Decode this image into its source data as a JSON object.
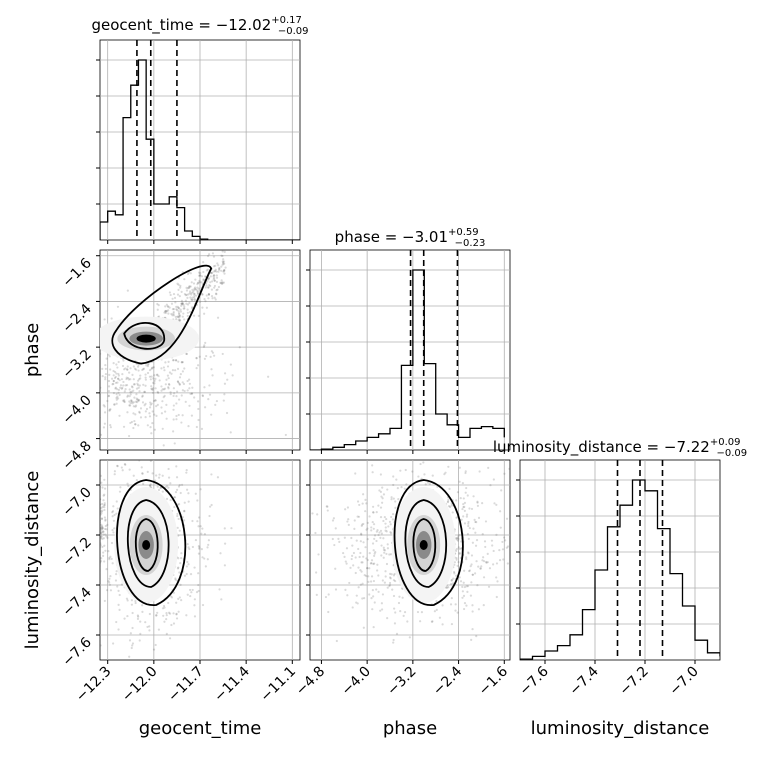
{
  "chart_data": {
    "type": "corner",
    "parameters": [
      "geocent_time",
      "phase",
      "luminosity_distance"
    ],
    "axes": {
      "geocent_time": {
        "range": [
          -12.35,
          -11.05
        ],
        "ticks": [
          -12.3,
          -12.0,
          -11.7,
          -11.4,
          -11.1
        ],
        "tick_labels": [
          "−12.3",
          "−12.0",
          "−11.7",
          "−11.4",
          "−11.1"
        ],
        "label": "geocent_time"
      },
      "phase": {
        "range": [
          -5.0,
          -1.5
        ],
        "ticks": [
          -4.8,
          -4.0,
          -3.2,
          -2.4,
          -1.6
        ],
        "tick_labels": [
          "−4.8",
          "−4.0",
          "−3.2",
          "−2.4",
          "−1.6"
        ],
        "label": "phase"
      },
      "luminosity_distance": {
        "range": [
          -7.7,
          -6.9
        ],
        "ticks": [
          -7.6,
          -7.4,
          -7.2,
          -7.0
        ],
        "tick_labels": [
          "−7.6",
          "−7.4",
          "−7.2",
          "−7.0"
        ],
        "label": "luminosity_distance"
      }
    },
    "titles": [
      {
        "name": "geocent_time",
        "main": "geocent_time = −12.02",
        "sup": "+0.17",
        "sub": "−0.09"
      },
      {
        "name": "phase",
        "main": "phase = −3.01",
        "sup": "+0.59",
        "sub": "−0.23"
      },
      {
        "name": "luminosity_distance",
        "main": "luminosity_distance = −7.22",
        "sup": "+0.09",
        "sub": "−0.09"
      }
    ],
    "histograms": [
      {
        "param": "geocent_time",
        "bins": [
          -12.35,
          -12.3,
          -12.25,
          -12.2,
          -12.15,
          -12.1,
          -12.05,
          -12.0,
          -11.95,
          -11.9,
          -11.85,
          -11.8,
          -11.75,
          -11.7,
          -11.65,
          -11.6,
          -11.55,
          -11.5,
          -11.45,
          -11.4,
          -11.35,
          -11.3,
          -11.25,
          -11.2,
          -11.15,
          -11.1,
          -11.05
        ],
        "counts": [
          0.1,
          0.16,
          0.14,
          0.68,
          0.86,
          1.0,
          0.56,
          0.2,
          0.2,
          0.24,
          0.18,
          0.05,
          0.02,
          0.005,
          0,
          0,
          0,
          0,
          0,
          0,
          0,
          0,
          0,
          0,
          0,
          0
        ],
        "quantiles": [
          -12.11,
          -12.02,
          -11.85
        ]
      },
      {
        "param": "phase",
        "bins": [
          -5.0,
          -4.8,
          -4.6,
          -4.4,
          -4.2,
          -4.0,
          -3.8,
          -3.6,
          -3.4,
          -3.2,
          -3.0,
          -2.8,
          -2.6,
          -2.4,
          -2.2,
          -2.0,
          -1.8,
          -1.6
        ],
        "counts": [
          0,
          0.005,
          0.015,
          0.03,
          0.05,
          0.07,
          0.09,
          0.12,
          0.47,
          1.0,
          0.48,
          0.2,
          0.14,
          0.07,
          0.12,
          0.13,
          0.12,
          0.07
        ],
        "quantiles": [
          -3.24,
          -3.01,
          -2.42
        ]
      },
      {
        "param": "luminosity_distance",
        "bins": [
          -7.7,
          -7.65,
          -7.6,
          -7.55,
          -7.5,
          -7.45,
          -7.4,
          -7.35,
          -7.3,
          -7.25,
          -7.2,
          -7.15,
          -7.1,
          -7.05,
          -7.0,
          -6.95,
          -6.9
        ],
        "counts": [
          0.005,
          0.02,
          0.05,
          0.08,
          0.14,
          0.28,
          0.5,
          0.74,
          0.86,
          1.0,
          0.94,
          0.73,
          0.48,
          0.3,
          0.11,
          0.04,
          0.02
        ],
        "quantiles": [
          -7.31,
          -7.22,
          -7.13
        ]
      }
    ],
    "contour_panels": [
      {
        "x": "geocent_time",
        "y": "phase",
        "peak": [
          -12.05,
          -3.05
        ]
      },
      {
        "x": "geocent_time",
        "y": "luminosity_distance",
        "peak": [
          -12.05,
          -7.24
        ]
      },
      {
        "x": "phase",
        "y": "luminosity_distance",
        "peak": [
          -3.01,
          -7.24
        ]
      }
    ],
    "grid": true
  }
}
